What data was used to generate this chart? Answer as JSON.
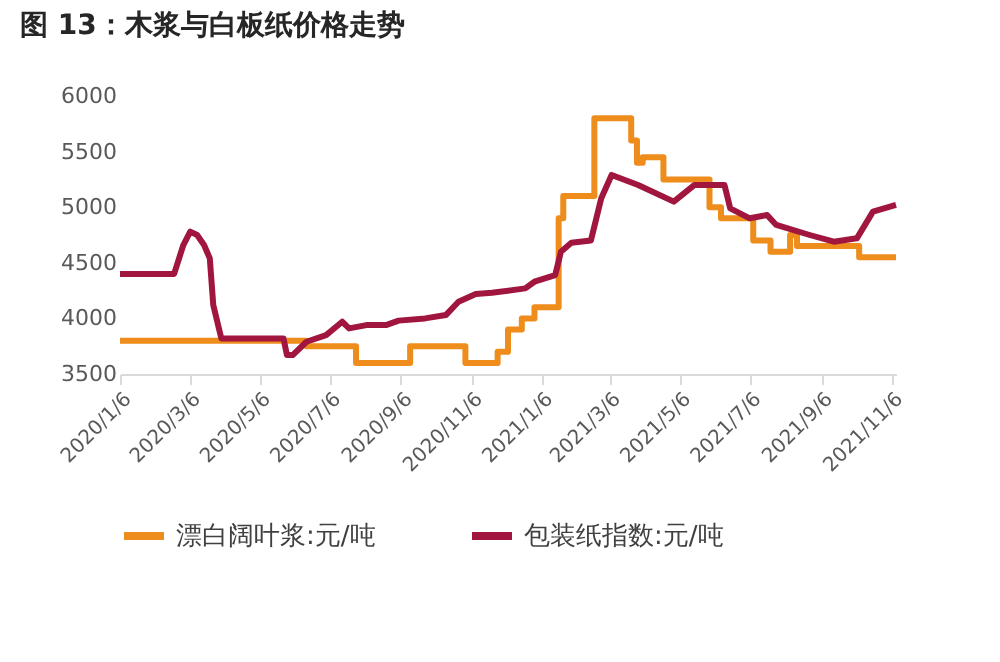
{
  "chart_data": {
    "type": "line",
    "title": "图 13：木浆与白板纸价格走势",
    "xlim": [
      "2020-01-06",
      "2021-11-10"
    ],
    "xticks": [
      {
        "value": "2020-01-06",
        "label": "2020/1/6"
      },
      {
        "value": "2020-03-06",
        "label": "2020/3/6"
      },
      {
        "value": "2020-05-06",
        "label": "2020/5/6"
      },
      {
        "value": "2020-07-06",
        "label": "2020/7/6"
      },
      {
        "value": "2020-09-06",
        "label": "2020/9/6"
      },
      {
        "value": "2020-11-06",
        "label": "2020/11/6"
      },
      {
        "value": "2021-01-06",
        "label": "2021/1/6"
      },
      {
        "value": "2021-03-06",
        "label": "2021/3/6"
      },
      {
        "value": "2021-05-06",
        "label": "2021/5/6"
      },
      {
        "value": "2021-07-06",
        "label": "2021/7/6"
      },
      {
        "value": "2021-09-06",
        "label": "2021/9/6"
      },
      {
        "value": "2021-11-06",
        "label": "2021/11/6"
      }
    ],
    "ylim": [
      3500,
      6000
    ],
    "yticks": [
      3500,
      4000,
      4500,
      5000,
      5500,
      6000
    ],
    "grid": false,
    "legend": "bottom",
    "series": [
      {
        "name": "漂白阔叶浆:元/吨",
        "type": "step",
        "color": "#ee8c1c",
        "x": [
          "2020-01-06",
          "2020-06-16",
          "2020-07-29",
          "2020-09-14",
          "2020-11-01",
          "2020-11-29",
          "2020-12-08",
          "2020-12-20",
          "2020-12-31",
          "2021-01-21",
          "2021-01-25",
          "2021-02-21",
          "2021-03-25",
          "2021-03-30",
          "2021-04-04",
          "2021-04-22",
          "2021-06-01",
          "2021-06-11",
          "2021-07-09",
          "2021-07-24",
          "2021-08-10",
          "2021-08-16",
          "2021-10-09",
          "2021-11-10"
        ],
        "values": [
          3800,
          3750,
          3600,
          3750,
          3600,
          3700,
          3900,
          4000,
          4100,
          4900,
          5100,
          5800,
          5600,
          5400,
          5450,
          5250,
          5000,
          4900,
          4700,
          4600,
          4750,
          4650,
          4550,
          4550
        ]
      },
      {
        "name": "包装纸指数:元/吨",
        "type": "line",
        "color": "#a0163f",
        "x": [
          "2020-01-06",
          "2020-02-22",
          "2020-03-01",
          "2020-03-07",
          "2020-03-13",
          "2020-03-19",
          "2020-03-24",
          "2020-03-27",
          "2020-04-03",
          "2020-04-09",
          "2020-05-27",
          "2020-05-30",
          "2020-06-04",
          "2020-06-16",
          "2020-07-03",
          "2020-07-17",
          "2020-07-23",
          "2020-08-07",
          "2020-08-24",
          "2020-09-04",
          "2020-09-27",
          "2020-10-15",
          "2020-10-26",
          "2020-11-10",
          "2020-11-24",
          "2020-12-23",
          "2020-12-31",
          "2021-01-18",
          "2021-01-23",
          "2021-02-01",
          "2021-02-18",
          "2021-02-27",
          "2021-03-08",
          "2021-03-31",
          "2021-05-01",
          "2021-05-19",
          "2021-06-14",
          "2021-06-19",
          "2021-07-06",
          "2021-07-21",
          "2021-07-29",
          "2021-08-27",
          "2021-09-17",
          "2021-10-07",
          "2021-10-21",
          "2021-11-10"
        ],
        "values": [
          4400,
          4400,
          4660,
          4780,
          4750,
          4660,
          4540,
          4120,
          3820,
          3820,
          3820,
          3670,
          3670,
          3790,
          3850,
          3970,
          3910,
          3940,
          3940,
          3980,
          4000,
          4030,
          4150,
          4220,
          4230,
          4270,
          4330,
          4390,
          4600,
          4680,
          4700,
          5080,
          5290,
          5200,
          5050,
          5200,
          5200,
          4990,
          4900,
          4930,
          4840,
          4750,
          4690,
          4720,
          4960,
          5020
        ]
      }
    ]
  }
}
